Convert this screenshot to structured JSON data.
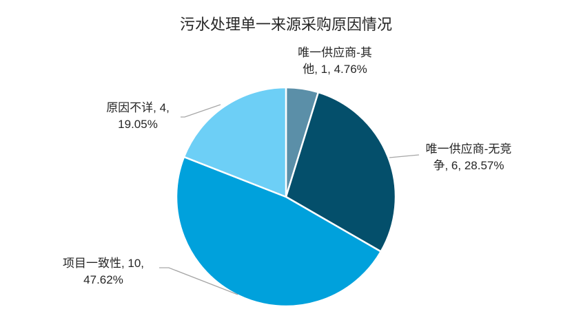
{
  "chart_data": {
    "type": "pie",
    "title": "污水处理单一来源采购原因情况",
    "slices": [
      {
        "label_lines": [
          "唯一供应商-其",
          "他, 1, 4.76%"
        ],
        "value": 1,
        "percent": 4.76,
        "color": "#5b8fa8"
      },
      {
        "label_lines": [
          "唯一供应商-无竞",
          "争, 6, 28.57%"
        ],
        "value": 6,
        "percent": 28.57,
        "color": "#044f6b"
      },
      {
        "label_lines": [
          "项目一致性, 10,",
          "47.62%"
        ],
        "value": 10,
        "percent": 47.62,
        "color": "#00a1dc"
      },
      {
        "label_lines": [
          "原因不详, 4,",
          "19.05%"
        ],
        "value": 4,
        "percent": 19.05,
        "color": "#6dcff6"
      }
    ],
    "legend": "none"
  }
}
